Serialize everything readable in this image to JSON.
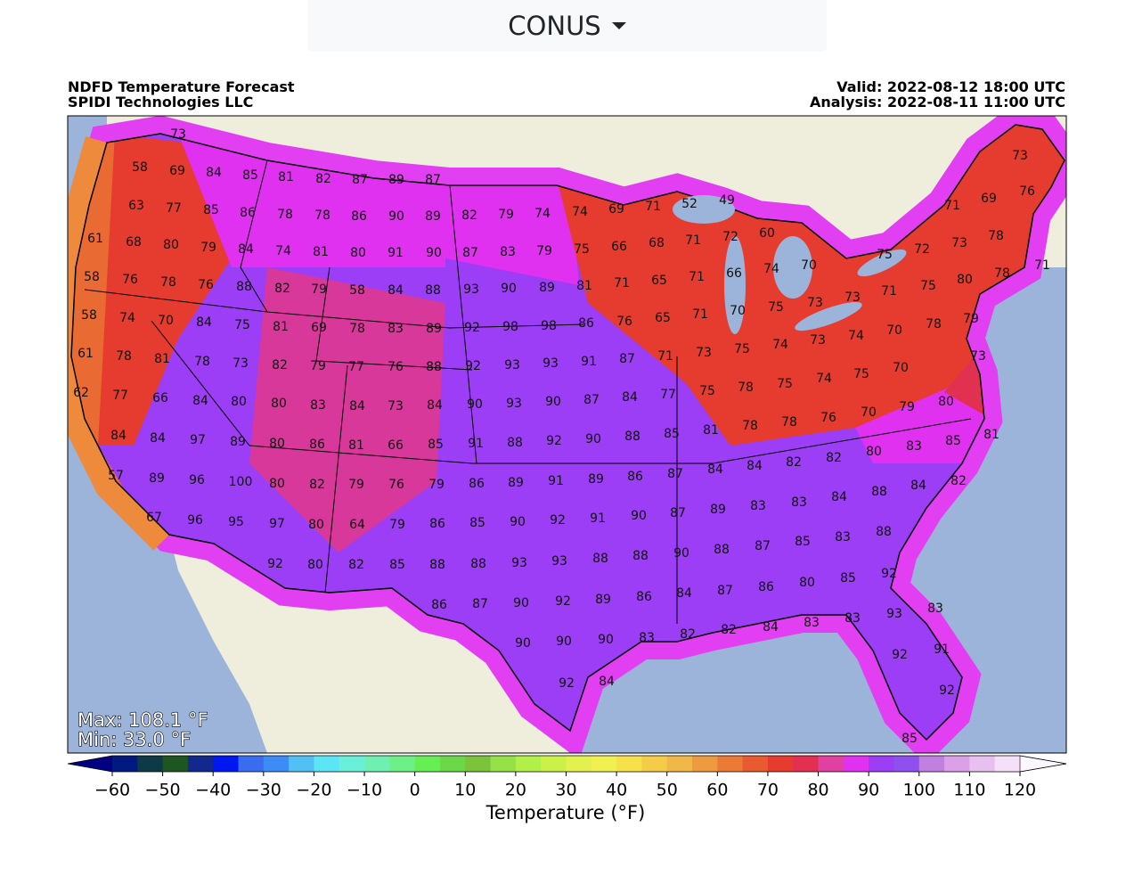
{
  "dropdown": {
    "label": "CONUS"
  },
  "header": {
    "title": "NDFD Temperature Forecast",
    "org": "SPIDI Technologies LLC",
    "valid": "Valid: 2022-08-12 18:00 UTC",
    "analysis": "Analysis: 2022-08-11 11:00 UTC"
  },
  "map": {
    "max": "Max: 108.1 °F",
    "min": "Min: 33.0 °F",
    "stations": [
      73,
      58,
      69,
      84,
      85,
      81,
      82,
      87,
      89,
      87,
      63,
      77,
      85,
      86,
      78,
      78,
      86,
      90,
      89,
      82,
      79,
      74,
      74,
      69,
      71,
      52,
      49,
      61,
      68,
      80,
      79,
      84,
      74,
      81,
      80,
      91,
      90,
      87,
      83,
      79,
      75,
      66,
      68,
      71,
      72,
      60,
      58,
      76,
      78,
      76,
      88,
      82,
      79,
      58,
      84,
      88,
      93,
      90,
      89,
      81,
      71,
      65,
      71,
      66,
      74,
      70,
      75,
      72,
      73,
      78,
      73,
      71,
      69,
      76,
      71,
      80,
      78,
      75,
      71,
      73,
      73,
      58,
      74,
      70,
      84,
      75,
      81,
      69,
      78,
      83,
      89,
      92,
      98,
      98,
      86,
      76,
      65,
      71,
      70,
      75,
      79,
      78,
      70,
      74,
      73,
      61,
      78,
      81,
      78,
      73,
      82,
      79,
      77,
      76,
      88,
      92,
      93,
      93,
      91,
      87,
      71,
      73,
      75,
      74,
      73,
      70,
      75,
      74,
      62,
      77,
      66,
      84,
      80,
      80,
      83,
      84,
      73,
      84,
      90,
      93,
      90,
      87,
      84,
      77,
      75,
      78,
      75,
      80,
      79,
      70,
      76,
      84,
      84,
      97,
      89,
      80,
      86,
      81,
      66,
      85,
      91,
      88,
      92,
      90,
      88,
      85,
      81,
      78,
      78,
      81,
      85,
      83,
      80,
      82,
      57,
      89,
      96,
      100,
      80,
      82,
      79,
      76,
      79,
      86,
      89,
      91,
      89,
      86,
      87,
      84,
      84,
      82,
      84,
      82,
      88,
      84,
      83,
      83,
      89,
      87,
      90,
      91,
      92,
      90,
      85,
      86,
      79,
      64,
      80,
      97,
      95,
      96,
      67,
      92,
      80,
      82,
      85,
      88,
      88,
      93,
      93,
      88,
      88,
      90,
      88,
      87,
      85,
      83,
      88,
      92,
      85,
      80,
      86,
      87,
      84,
      86,
      89,
      92,
      90,
      87,
      86,
      83,
      93,
      83,
      83,
      84,
      82,
      82,
      83,
      90,
      90,
      90,
      91,
      92,
      84,
      92,
      92,
      85
    ]
  },
  "colorbar": {
    "label": "Temperature (°F)",
    "lim": [
      -60,
      120
    ],
    "ticks": [
      {
        "value": -60,
        "label": "−60"
      },
      {
        "value": -50,
        "label": "−50"
      },
      {
        "value": -40,
        "label": "−40"
      },
      {
        "value": -30,
        "label": "−30"
      },
      {
        "value": -20,
        "label": "−20"
      },
      {
        "value": -10,
        "label": "−10"
      },
      0,
      10,
      20,
      30,
      40,
      50,
      60,
      70,
      80,
      90,
      100,
      110,
      120
    ],
    "colors": [
      "#001a80",
      "#0d3a46",
      "#1d5620",
      "#13288c",
      "#0018f0",
      "#3a6cf0",
      "#3d8cf5",
      "#53c0f5",
      "#5ce6f5",
      "#6af0d8",
      "#70f0b0",
      "#6ef088",
      "#66ee55",
      "#6ad848",
      "#7cc33c",
      "#96e048",
      "#b0f048",
      "#ccf04a",
      "#e2f050",
      "#f0f050",
      "#f5e14a",
      "#f5cc48",
      "#f0b848",
      "#ee9a40",
      "#ea7a36",
      "#e85a30",
      "#e63c30",
      "#e23050",
      "#e040a0",
      "#e030f0",
      "#9b3ef5",
      "#9050f0",
      "#c080e0",
      "#dca0e8",
      "#e8c0f0",
      "#f4e0f8"
    ],
    "extend_colors": [
      "#000080",
      "#fcf7ff"
    ]
  }
}
